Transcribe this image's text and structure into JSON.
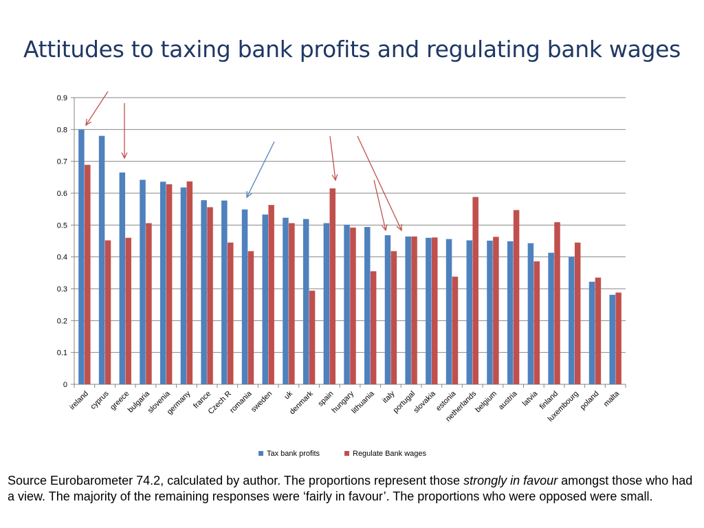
{
  "title": "Attitudes to taxing bank profits and regulating bank wages",
  "caption": {
    "part1": "Source Eurobarometer 74.2, calculated by author. The proportions represent those ",
    "emphasis": "strongly in favour",
    "part2": " amongst those who had a view. The majority of the remaining responses were ‘fairly in favour’. The proportions who were opposed were small."
  },
  "chart_data": {
    "type": "bar",
    "categories": [
      "ireland",
      "cyprus",
      "greece",
      "bulgaria",
      "slovenia",
      "germany",
      "france",
      "Czech R",
      "romania",
      "sweden",
      "uk",
      "denmark",
      "spain",
      "hungary",
      "lithuania",
      "italy",
      "portugal",
      "slovakia",
      "estonia",
      "netherlands",
      "belgium",
      "austria",
      "latvia",
      "finland",
      "luxembourg",
      "poland",
      "malta"
    ],
    "series": [
      {
        "name": "Tax bank profits",
        "color": "#4f81bd",
        "values": [
          0.8,
          0.78,
          0.665,
          0.642,
          0.636,
          0.618,
          0.578,
          0.577,
          0.549,
          0.533,
          0.523,
          0.519,
          0.506,
          0.501,
          0.494,
          0.468,
          0.464,
          0.46,
          0.456,
          0.452,
          0.451,
          0.449,
          0.443,
          0.413,
          0.4,
          0.322,
          0.281
        ]
      },
      {
        "name": "Regulate Bank  wages",
        "color": "#c0504d",
        "values": [
          0.689,
          0.452,
          0.46,
          0.506,
          0.628,
          0.637,
          0.556,
          0.445,
          0.418,
          0.563,
          0.506,
          0.294,
          0.615,
          0.492,
          0.355,
          0.418,
          0.464,
          0.461,
          0.338,
          0.588,
          0.463,
          0.547,
          0.386,
          0.509,
          0.445,
          0.335,
          0.288
        ]
      }
    ],
    "ylim": [
      0,
      0.9
    ],
    "yticks": [
      "0",
      "0.1",
      "0.2",
      "0.3",
      "0.4",
      "0.5",
      "0.6",
      "0.7",
      "0.8",
      "0.9"
    ],
    "grid": true,
    "legend": "bottom",
    "annotation_color_red": "#c0504d",
    "annotation_color_blue": "#4f81bd"
  }
}
